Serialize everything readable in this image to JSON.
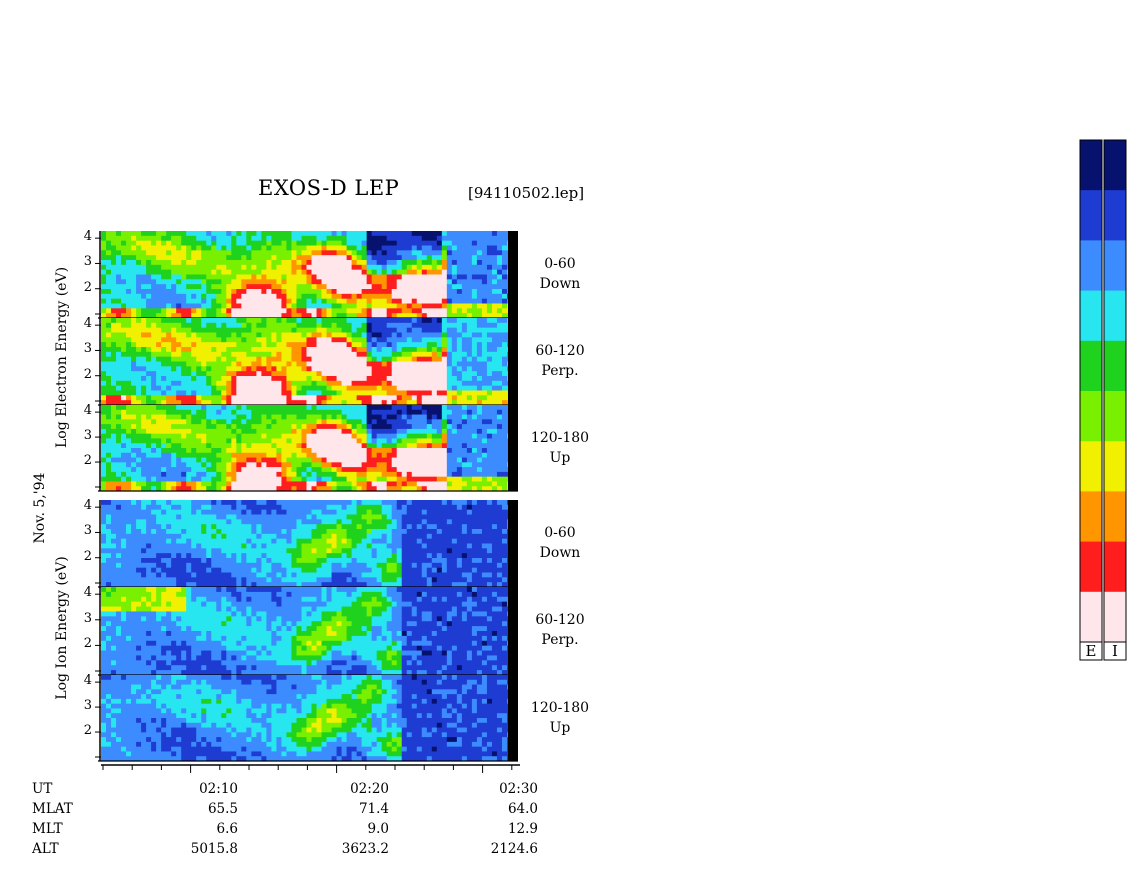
{
  "header": {
    "title": "EXOS-D LEP",
    "filename": "[94110502.lep]"
  },
  "side_labels": {
    "electron_axis": "Log   Electron   Energy (eV)",
    "ion_axis": "Log   Ion   Energy (eV)",
    "date": "Nov. 5,'94"
  },
  "colorbar_letters": [
    "E",
    "I"
  ],
  "ephemeris": {
    "rows": [
      {
        "name": "UT",
        "values": [
          "02:10",
          "02:20",
          "02:30"
        ]
      },
      {
        "name": "MLAT",
        "values": [
          "65.5",
          "71.4",
          "64.0"
        ]
      },
      {
        "name": "MLT",
        "values": [
          "6.6",
          "9.0",
          "12.9"
        ]
      },
      {
        "name": "ALT",
        "values": [
          "5015.8",
          "3623.2",
          "2124.6"
        ]
      }
    ]
  },
  "chart_data": {
    "type": "heatmap",
    "title": "EXOS-D LEP",
    "x_range_ut": [
      "02:04",
      "02:30"
    ],
    "x_ticks": [
      "02:10",
      "02:20",
      "02:30"
    ],
    "y_range_log_ev": [
      1,
      4.2
    ],
    "y_ticks": [
      "4",
      "3",
      "2"
    ],
    "panels": [
      {
        "species": "Electron",
        "pitch_angle": "0-60",
        "direction": "Down"
      },
      {
        "species": "Electron",
        "pitch_angle": "60-120",
        "direction": "Perp."
      },
      {
        "species": "Electron",
        "pitch_angle": "120-180",
        "direction": "Up"
      },
      {
        "species": "Ion",
        "pitch_angle": "0-60",
        "direction": "Down"
      },
      {
        "species": "Ion",
        "pitch_angle": "60-120",
        "direction": "Perp."
      },
      {
        "species": "Ion",
        "pitch_angle": "120-180",
        "direction": "Up"
      }
    ],
    "colorscale": [
      "#06126e",
      "#1e3cd2",
      "#3c8cff",
      "#28e6f0",
      "#1ed21e",
      "#78f000",
      "#f0f000",
      "#ff9600",
      "#ff1e1e",
      "#ffe6ea"
    ]
  }
}
